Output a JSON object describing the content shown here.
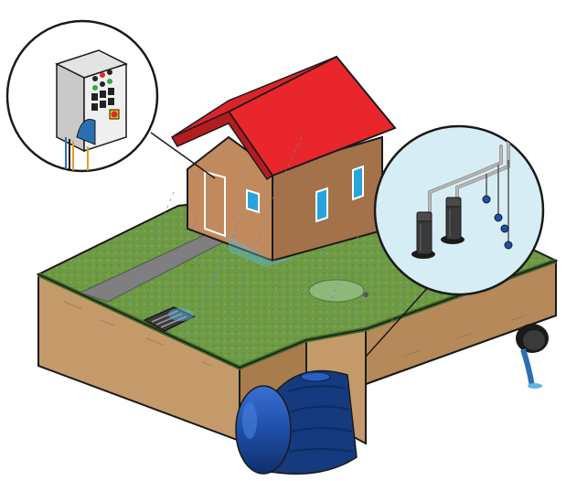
{
  "colors": {
    "grass": "#6f9a45",
    "grass_dark": "#557b33",
    "soil": "#c59a6a",
    "soil_dark": "#a97c4d",
    "roof": "#e8262b",
    "roof_dark": "#b51c20",
    "wall": "#c08a5e",
    "wall_dark": "#a3714a",
    "window": "#29a3dd",
    "path": "#7f7f7f",
    "tank": "#1f4fa8",
    "tank_dark": "#153a7e",
    "inset_bg": "#d7edf6",
    "outline": "#1a1a1a"
  },
  "icons": [
    "control-panel-icon",
    "pumps-sprinklers-icon",
    "water-tank-icon",
    "drain-grate-icon",
    "outlet-pipe-icon"
  ]
}
